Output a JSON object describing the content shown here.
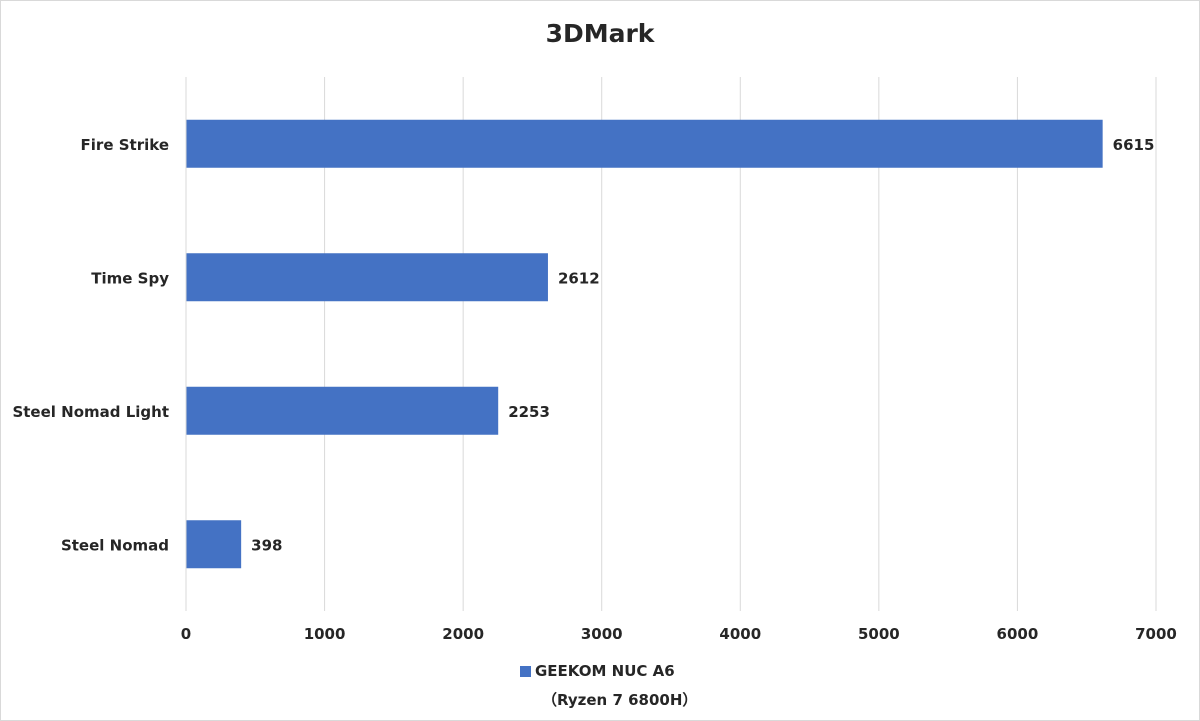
{
  "chart_data": {
    "type": "bar",
    "orientation": "horizontal",
    "title": "3DMark",
    "categories": [
      "Fire Strike",
      "Time Spy",
      "Steel Nomad Light",
      "Steel Nomad"
    ],
    "series": [
      {
        "name": "GEEKOM NUC A6",
        "name_line2": "（Ryzen 7 6800H）",
        "values": [
          6615,
          2612,
          2253,
          398
        ],
        "color": "#4472C4"
      }
    ],
    "xlim": [
      0,
      7000
    ],
    "xticks": [
      0,
      1000,
      2000,
      3000,
      4000,
      5000,
      6000,
      7000
    ],
    "grid": "vertical",
    "legend_position": "bottom",
    "data_labels": true
  }
}
